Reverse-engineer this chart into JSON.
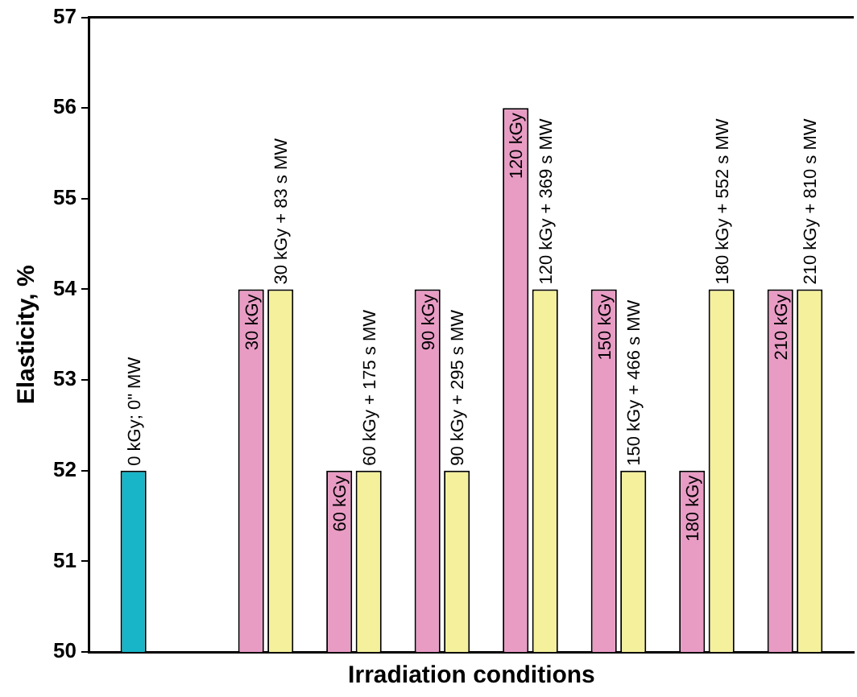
{
  "chart_data": {
    "type": "bar",
    "xlabel": "Irradiation conditions",
    "ylabel": "Elasticity, %",
    "categories": [
      null,
      "0 kGy; 0\" MW",
      null,
      null,
      null,
      "30 kGy",
      "30 kGy + 83 s MW",
      null,
      "60 kGy",
      "60 kGy + 175 s MW",
      null,
      "90 kGy",
      "90 kGy + 295 s MW",
      null,
      "120 kGy",
      "120 kGy + 369 s MW",
      null,
      "150 kGy",
      "150 kGy + 466 s MW",
      null,
      "180 kGy",
      "180 kGy + 552 s MW",
      null,
      "210 kGy",
      "210 kGy + 810 s MW",
      null
    ],
    "values": [
      null,
      52,
      null,
      null,
      null,
      54,
      54,
      null,
      52,
      52,
      null,
      54,
      52,
      null,
      56,
      54,
      null,
      54,
      52,
      null,
      52,
      54,
      null,
      54,
      54,
      null
    ],
    "colors": [
      "#e89cc4",
      "#18b4c8",
      "#e89cc4",
      "#e89cc4",
      "#e89cc4",
      "#e89cc4",
      "#f4f09c",
      "#e89cc4",
      "#e89cc4",
      "#f4f09c",
      "#e89cc4",
      "#e89cc4",
      "#f4f09c",
      "#e89cc4",
      "#e89cc4",
      "#f4f09c",
      "#e89cc4",
      "#e89cc4",
      "#f4f09c",
      "#e89cc4",
      "#e89cc4",
      "#f4f09c",
      "#e89cc4",
      "#e89cc4",
      "#f4f09c",
      "#e89cc4"
    ],
    "ylim": [
      50,
      57
    ],
    "yticks": [
      50,
      51,
      52,
      53,
      54,
      55,
      56,
      57
    ],
    "grid": false,
    "legend": false
  }
}
